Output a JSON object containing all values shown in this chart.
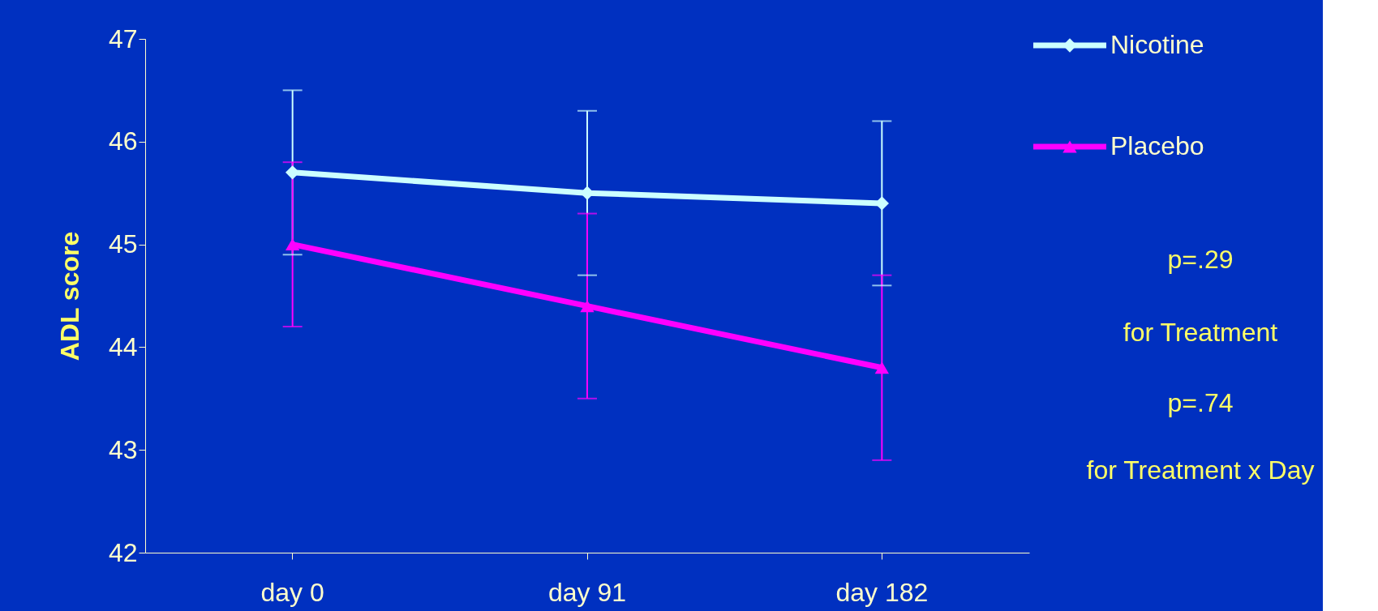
{
  "chart_data": {
    "type": "line",
    "ylabel": "ADL score",
    "categories": [
      "day 0",
      "day 91",
      "day 182"
    ],
    "series": [
      {
        "name": "Nicotine",
        "color": "#ccffff",
        "marker": "diamond",
        "values": [
          45.7,
          45.5,
          45.4
        ],
        "errors": [
          0.8,
          0.8,
          0.8
        ]
      },
      {
        "name": "Placebo",
        "color": "#ff00ff",
        "marker": "triangle",
        "values": [
          45.0,
          44.4,
          43.8
        ],
        "errors": [
          0.8,
          0.9,
          0.9
        ]
      }
    ],
    "ylim": [
      42,
      47
    ],
    "yticks": [
      42,
      43,
      44,
      45,
      46,
      47
    ],
    "grid": false,
    "legend": "top right",
    "annotations": [
      "p=.29",
      "for Treatment",
      "p=.74",
      "for Treatment x Day"
    ]
  }
}
